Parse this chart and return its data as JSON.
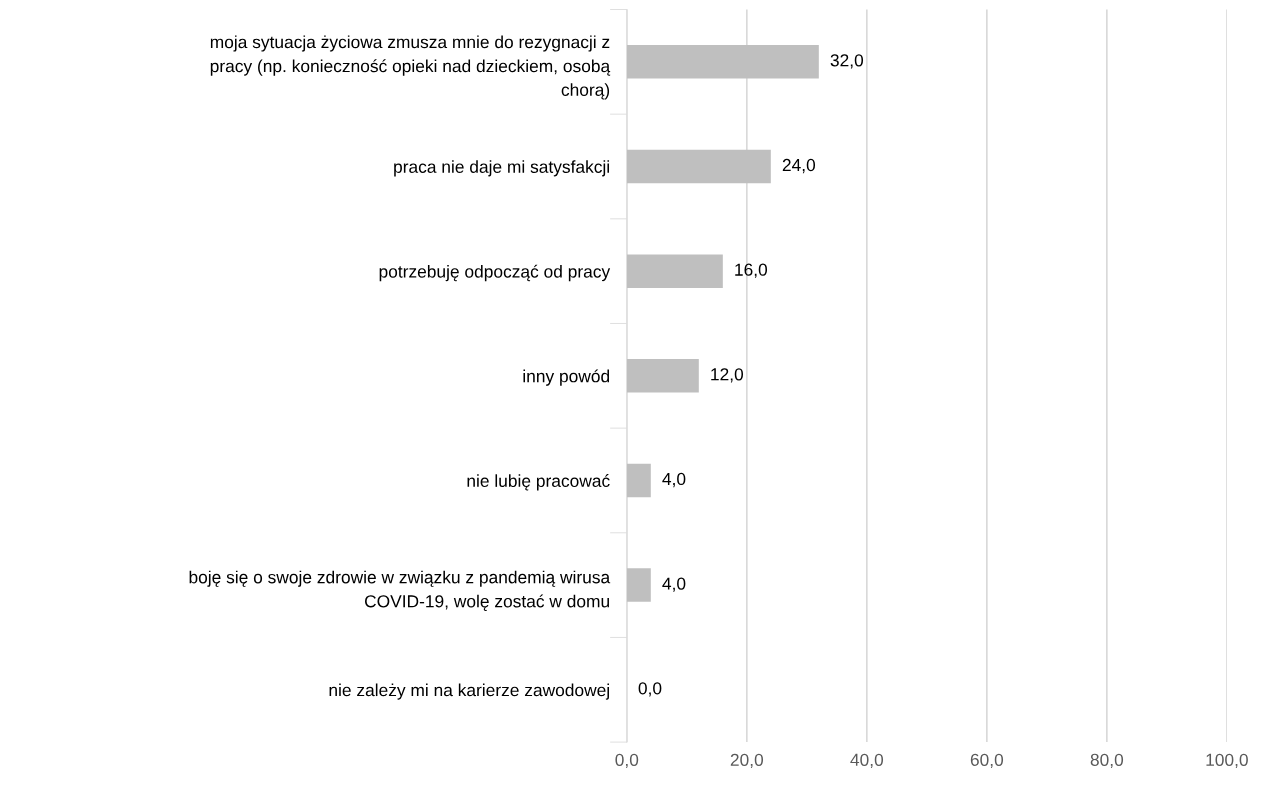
{
  "chart_data": {
    "type": "bar",
    "orientation": "horizontal",
    "categories": [
      "moja sytuacja życiowa zmusza mnie do rezygnacji z\npracy (np. konieczność opieki nad dzieckiem, osobą\nchorą)",
      "praca nie daje mi satysfakcji",
      "potrzebuję odpocząć od pracy",
      "inny powód",
      "nie lubię pracować",
      "boję się o swoje zdrowie w związku z pandemią wirusa\nCOVID-19, wolę zostać w domu",
      "nie zależy mi na karierze zawodowej"
    ],
    "values": [
      32,
      24,
      16,
      12,
      4,
      4,
      0
    ],
    "value_labels": [
      "32,0",
      "24,0",
      "16,0",
      "12,0",
      "4,0",
      "4,0",
      "0,0"
    ],
    "color": "#bfbfbf",
    "xlim": [
      0,
      100
    ],
    "xticks": [
      {
        "value": 0,
        "label": "0,0"
      },
      {
        "value": 20,
        "label": "20,0"
      },
      {
        "value": 40,
        "label": "40,0"
      },
      {
        "value": 60,
        "label": "60,0"
      },
      {
        "value": 80,
        "label": "80,0"
      },
      {
        "value": 100,
        "label": "100,0"
      }
    ],
    "grid": "x",
    "legend": false
  }
}
